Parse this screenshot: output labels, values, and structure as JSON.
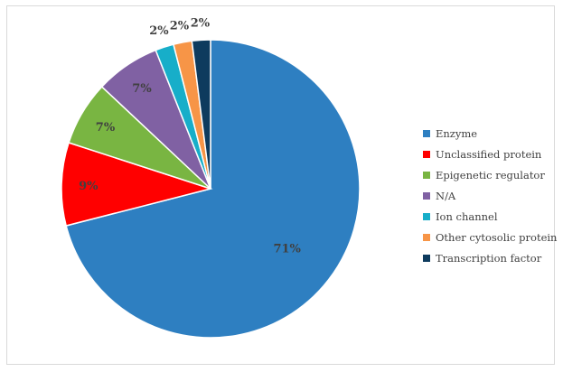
{
  "chart_data": {
    "type": "pie",
    "categories": [
      "Enzyme",
      "Unclassified protein",
      "Epigenetic regulator",
      "N/A",
      "Ion channel",
      "Other cytosolic protein",
      "Transcription factor"
    ],
    "values": [
      71,
      9,
      7,
      7,
      2,
      2,
      2
    ],
    "data_labels": [
      "71%",
      "9%",
      "7%",
      "7%",
      "2%",
      "2%",
      "2%"
    ],
    "colors": [
      "#2e7fc1",
      "#ff0000",
      "#79b542",
      "#8061a3",
      "#17aec9",
      "#f79547",
      "#0e3b5e"
    ],
    "start_angle_deg": 0,
    "direction": "clockwise",
    "legend": "right",
    "title": ""
  }
}
